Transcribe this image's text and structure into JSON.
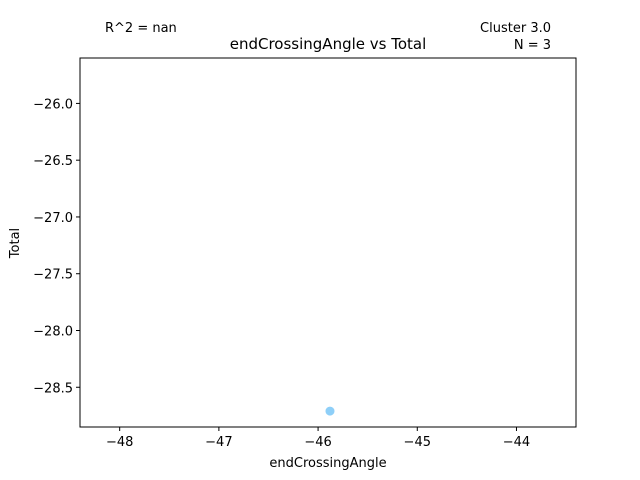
{
  "chart_data": {
    "type": "scatter",
    "title": "endCrossingAngle vs Total",
    "xlabel": "endCrossingAngle",
    "ylabel": "Total",
    "xlim": [
      -48.4,
      -43.4
    ],
    "ylim": [
      -28.85,
      -25.6
    ],
    "xticks": [
      -48,
      -47,
      -46,
      -45,
      -44
    ],
    "xtick_labels": [
      "−48",
      "−47",
      "−46",
      "−45",
      "−44"
    ],
    "yticks": [
      -26.0,
      -26.5,
      -27.0,
      -27.5,
      -28.0,
      -28.5
    ],
    "ytick_labels": [
      "−26.0",
      "−26.5",
      "−27.0",
      "−27.5",
      "−28.0",
      "−28.5"
    ],
    "grid": false,
    "legend": "none",
    "points": [
      {
        "x": -45.88,
        "y": -28.71
      }
    ],
    "point_color": "#8ecff8",
    "annotations": {
      "r2": "R^2 = nan",
      "cluster": "Cluster 3.0",
      "n": "N = 3"
    }
  }
}
